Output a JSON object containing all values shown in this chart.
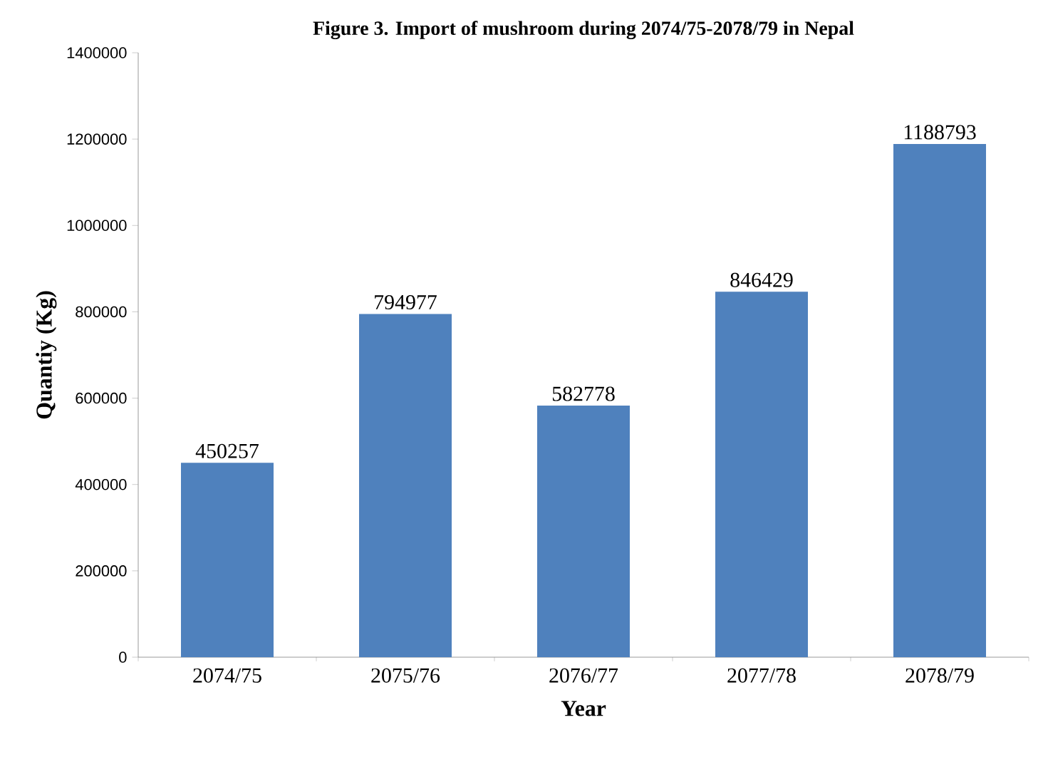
{
  "chart_data": {
    "type": "bar",
    "title": "Figure 3. Import of mushroom during 2074/75-2078/79 in Nepal",
    "xlabel": "Year",
    "ylabel": "Quantiy (Kg)",
    "categories": [
      "2074/75",
      "2075/76",
      "2076/77",
      "2077/78",
      "2078/79"
    ],
    "values": [
      450257,
      794977,
      582778,
      846429,
      1188793
    ],
    "color": "#4f81bd",
    "ylim": [
      0,
      1400000
    ],
    "yticks": [
      0,
      200000,
      400000,
      600000,
      800000,
      1000000,
      1200000,
      1400000
    ],
    "data_labels": true
  }
}
